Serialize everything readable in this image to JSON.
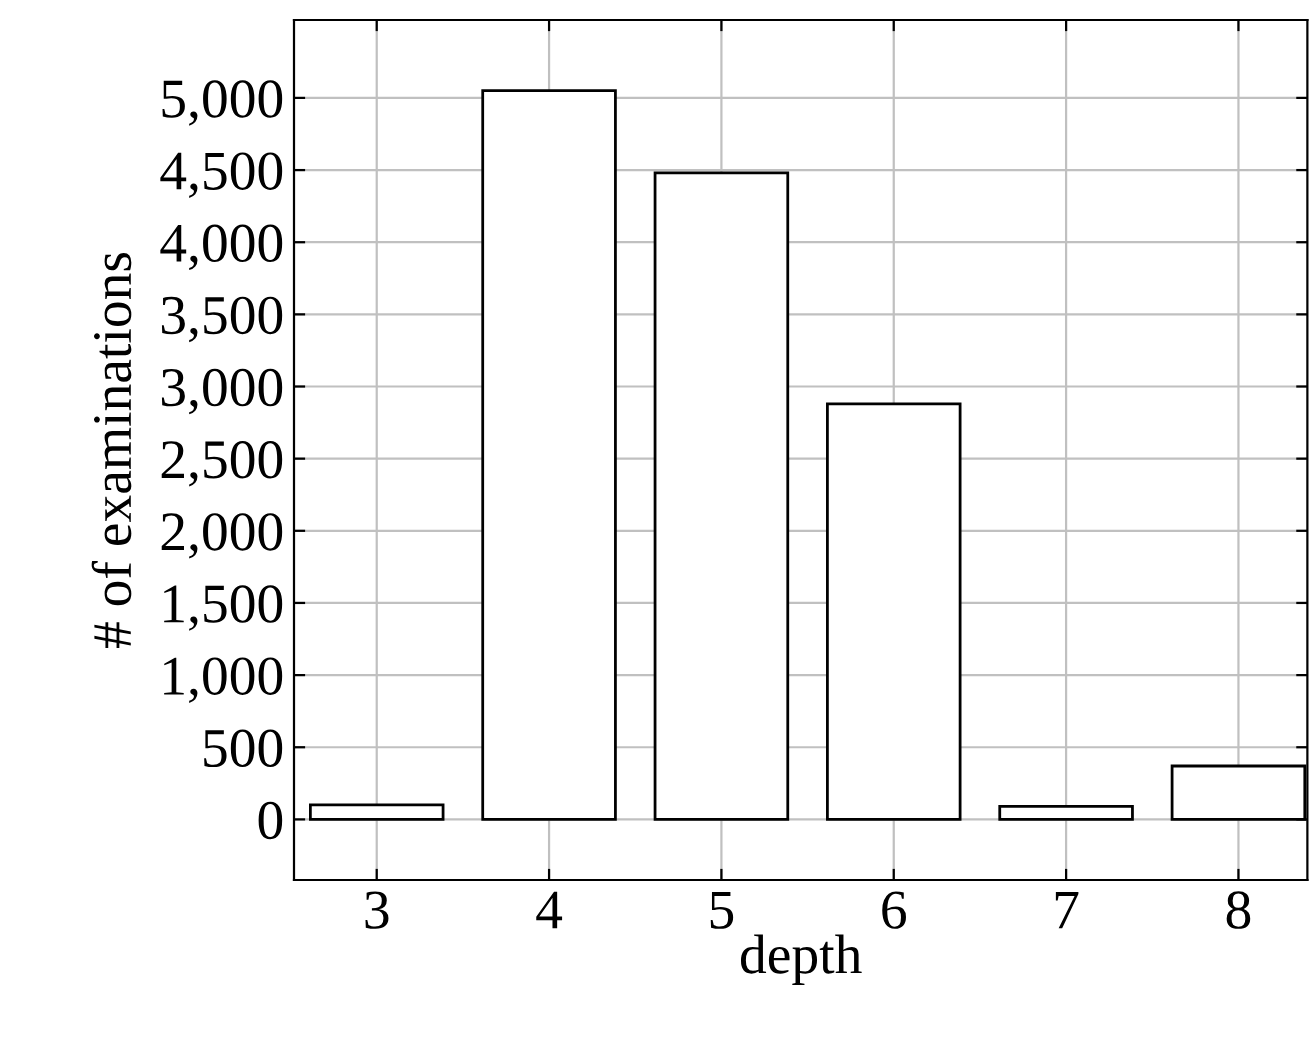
{
  "chart_data": {
    "type": "bar",
    "xlabel": "depth",
    "ylabel": "# of examinations",
    "x": [
      3,
      4,
      5,
      6,
      7,
      8
    ],
    "values": [
      100,
      5050,
      4480,
      2880,
      90,
      370
    ],
    "color": "#ffffff",
    "xlim": [
      2.52,
      8.4
    ],
    "xticks": [
      3,
      4,
      5,
      6,
      7,
      8
    ],
    "ylim": [
      -420,
      5540
    ],
    "yticks": [
      0,
      500,
      {
        "value": 1000,
        "label": "1,000"
      },
      {
        "value": 1500,
        "label": "1,500"
      },
      {
        "value": 2000,
        "label": "2,000"
      },
      {
        "value": 2500,
        "label": "2,500"
      },
      {
        "value": 3000,
        "label": "3,000"
      },
      {
        "value": 3500,
        "label": "3,500"
      },
      {
        "value": 4000,
        "label": "4,000"
      },
      {
        "value": 4500,
        "label": "4,500"
      },
      {
        "value": 5000,
        "label": "5,000"
      }
    ],
    "grid": true,
    "legend": false
  }
}
